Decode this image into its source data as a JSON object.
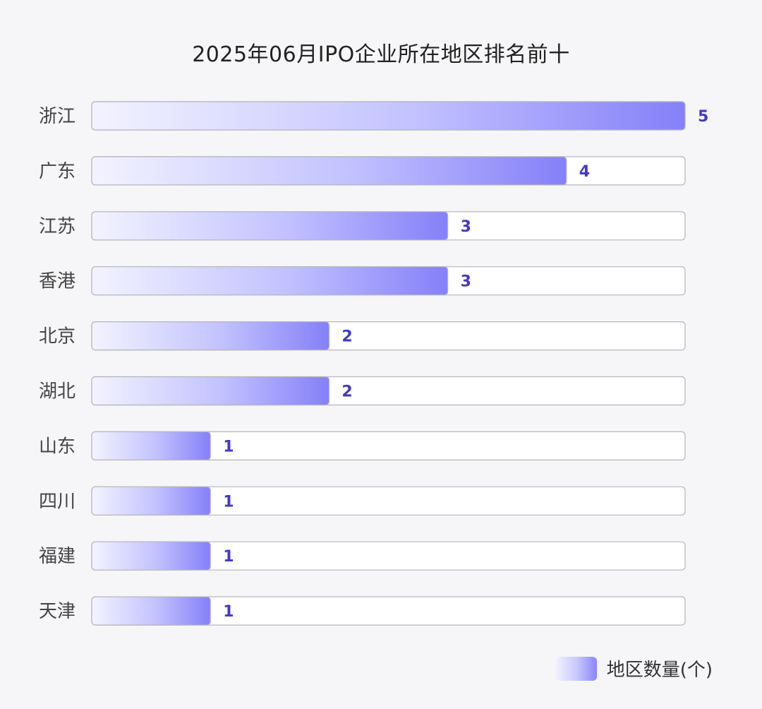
{
  "chart_data": {
    "type": "bar",
    "orientation": "horizontal",
    "title": "2025年06月IPO企业所在地区排名前十",
    "categories": [
      "浙江",
      "广东",
      "江苏",
      "香港",
      "北京",
      "湖北",
      "山东",
      "四川",
      "福建",
      "天津"
    ],
    "series": [
      {
        "name": "地区数量(个)",
        "values": [
          5,
          4,
          3,
          3,
          2,
          2,
          1,
          1,
          1,
          1
        ]
      }
    ],
    "xlim": [
      0,
      5
    ],
    "grid": false,
    "legend_position": "bottom-right",
    "colors": {
      "bar_start": "#f3f3ff",
      "bar_end": "#8580f8",
      "track_border": "#b5b5bd",
      "value_text": "#4338ca"
    }
  }
}
